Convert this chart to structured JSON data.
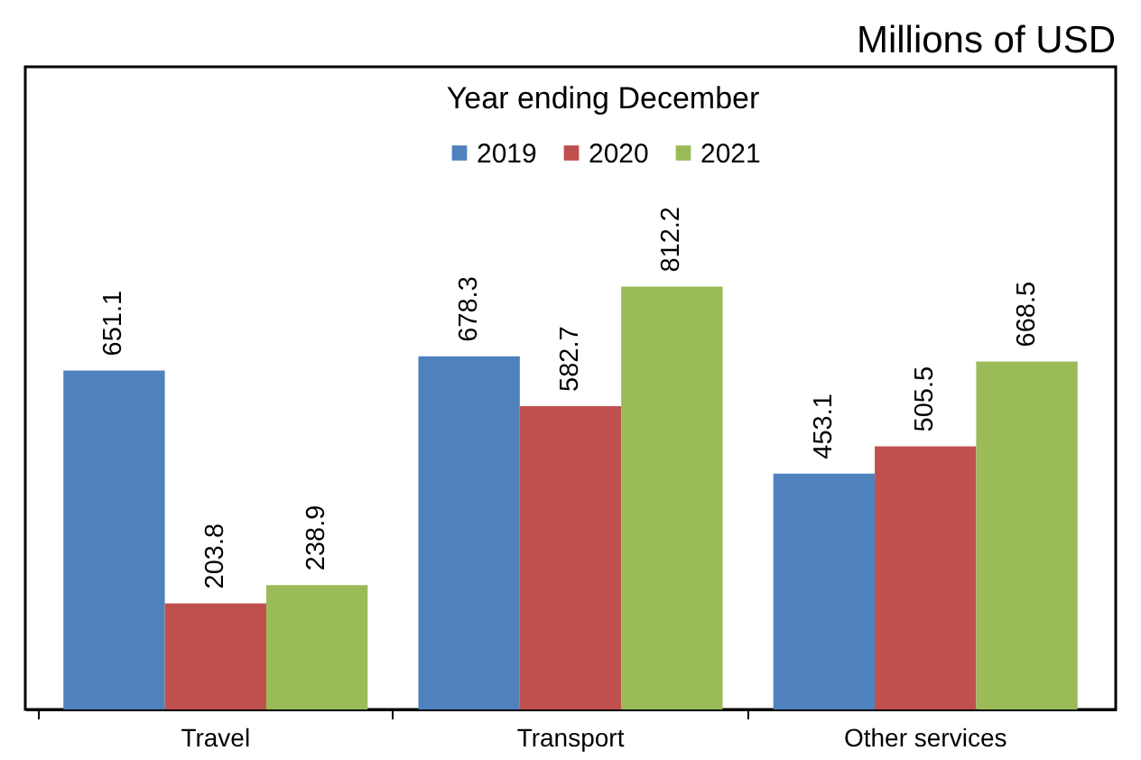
{
  "chart_data": {
    "type": "bar",
    "annotations": [
      "Millions of USD"
    ],
    "legend_title": "Year ending December",
    "categories": [
      "Travel",
      "Transport",
      "Other services"
    ],
    "series": [
      {
        "name": "2019",
        "color": "#4f81bd",
        "values": [
          651.1,
          678.3,
          453.1
        ]
      },
      {
        "name": "2020",
        "color": "#c0504d",
        "values": [
          203.8,
          582.7,
          505.5
        ]
      },
      {
        "name": "2021",
        "color": "#9bbb59",
        "values": [
          238.9,
          812.2,
          668.5
        ]
      }
    ],
    "data_labels": true,
    "legend": "top"
  }
}
